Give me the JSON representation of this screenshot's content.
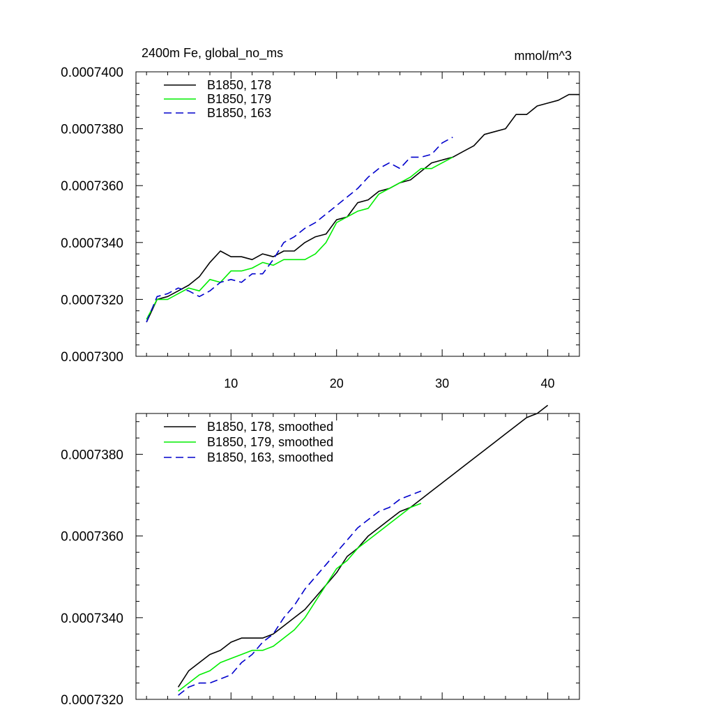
{
  "chart_data": [
    {
      "type": "line",
      "title": "2400m Fe, global_no_ms",
      "units": "mmol/m^3",
      "xlim": [
        1,
        43
      ],
      "ylim": [
        0.00073,
        0.00074
      ],
      "x_ticks": [
        10,
        20,
        30,
        40
      ],
      "x_tick_labels": [
        "10",
        "20",
        "30",
        "40"
      ],
      "y_ticks": [
        0.00073,
        0.000732,
        0.000734,
        0.000736,
        0.000738,
        0.00074
      ],
      "y_tick_labels": [
        "0.0007300",
        "0.0007320",
        "0.0007340",
        "0.0007360",
        "0.0007380",
        "0.0007400"
      ],
      "grid": false,
      "legend_position": "top-left",
      "series": [
        {
          "name": "B1850, 178",
          "color": "#000000",
          "dash": "solid",
          "x": [
            2,
            3,
            4,
            5,
            6,
            7,
            8,
            9,
            10,
            11,
            12,
            13,
            14,
            15,
            16,
            17,
            18,
            19,
            20,
            21,
            22,
            23,
            24,
            25,
            26,
            27,
            28,
            29,
            30,
            31,
            32,
            33,
            34,
            35,
            36,
            37,
            38,
            39,
            40,
            41,
            42,
            43
          ],
          "y": [
            0.0007312,
            0.000732,
            0.0007321,
            0.0007323,
            0.0007325,
            0.0007328,
            0.0007333,
            0.0007337,
            0.0007335,
            0.0007335,
            0.0007334,
            0.0007336,
            0.0007335,
            0.0007337,
            0.0007337,
            0.000734,
            0.0007342,
            0.0007343,
            0.0007348,
            0.0007349,
            0.0007354,
            0.0007355,
            0.0007358,
            0.0007359,
            0.0007361,
            0.0007362,
            0.0007365,
            0.0007368,
            0.0007369,
            0.000737,
            0.0007372,
            0.0007374,
            0.0007378,
            0.0007379,
            0.000738,
            0.0007385,
            0.0007385,
            0.0007388,
            0.0007389,
            0.000739,
            0.0007392,
            0.0007392
          ]
        },
        {
          "name": "B1850, 179",
          "color": "#00ee00",
          "dash": "solid",
          "x": [
            2,
            3,
            4,
            5,
            6,
            7,
            8,
            9,
            10,
            11,
            12,
            13,
            14,
            15,
            16,
            17,
            18,
            19,
            20,
            21,
            22,
            23,
            24,
            25,
            26,
            27,
            28,
            29,
            30,
            31
          ],
          "y": [
            0.0007313,
            0.000732,
            0.000732,
            0.0007322,
            0.0007324,
            0.0007323,
            0.0007327,
            0.0007326,
            0.000733,
            0.000733,
            0.0007331,
            0.0007333,
            0.0007332,
            0.0007334,
            0.0007334,
            0.0007334,
            0.0007336,
            0.000734,
            0.0007347,
            0.0007349,
            0.0007351,
            0.0007352,
            0.0007357,
            0.0007359,
            0.0007361,
            0.0007363,
            0.0007366,
            0.0007366,
            0.0007368,
            0.000737
          ]
        },
        {
          "name": "B1850, 163",
          "color": "#0000cc",
          "dash": "dashed",
          "x": [
            2,
            3,
            4,
            5,
            6,
            7,
            8,
            9,
            10,
            11,
            12,
            13,
            14,
            15,
            16,
            17,
            18,
            19,
            20,
            21,
            22,
            23,
            24,
            25,
            26,
            27,
            28,
            29,
            30,
            31
          ],
          "y": [
            0.0007312,
            0.0007321,
            0.0007322,
            0.0007324,
            0.0007323,
            0.0007321,
            0.0007323,
            0.0007326,
            0.0007327,
            0.0007326,
            0.0007329,
            0.0007329,
            0.0007334,
            0.000734,
            0.0007342,
            0.0007345,
            0.0007347,
            0.000735,
            0.0007353,
            0.0007356,
            0.0007359,
            0.0007363,
            0.0007366,
            0.0007368,
            0.0007366,
            0.000737,
            0.000737,
            0.0007371,
            0.0007375,
            0.0007377
          ]
        }
      ]
    },
    {
      "type": "line",
      "xlim": [
        1,
        43
      ],
      "ylim": [
        0.000732,
        0.000739
      ],
      "x_ticks": [
        10,
        20,
        30,
        40
      ],
      "x_tick_labels": [
        "",
        "",
        "",
        ""
      ],
      "y_ticks": [
        0.000732,
        0.000734,
        0.000736,
        0.000738
      ],
      "y_tick_labels": [
        "0.0007320",
        "0.0007340",
        "0.0007360",
        "0.0007380"
      ],
      "grid": false,
      "legend_position": "top-left",
      "series": [
        {
          "name": "B1850, 178, smoothed",
          "color": "#000000",
          "dash": "solid",
          "x": [
            5,
            6,
            7,
            8,
            9,
            10,
            11,
            12,
            13,
            14,
            15,
            16,
            17,
            18,
            19,
            20,
            21,
            22,
            23,
            24,
            25,
            26,
            27,
            28,
            29,
            30,
            31,
            32,
            33,
            34,
            35,
            36,
            37,
            38,
            39,
            40
          ],
          "y": [
            0.0007323,
            0.0007327,
            0.0007329,
            0.0007331,
            0.0007332,
            0.0007334,
            0.0007335,
            0.0007335,
            0.0007335,
            0.0007336,
            0.0007338,
            0.000734,
            0.0007342,
            0.0007345,
            0.0007348,
            0.0007351,
            0.0007355,
            0.0007357,
            0.000736,
            0.0007362,
            0.0007364,
            0.0007366,
            0.0007367,
            0.0007369,
            0.0007371,
            0.0007373,
            0.0007375,
            0.0007377,
            0.0007379,
            0.0007381,
            0.0007383,
            0.0007385,
            0.0007387,
            0.0007389,
            0.000739,
            0.0007392
          ]
        },
        {
          "name": "B1850, 179, smoothed",
          "color": "#00ee00",
          "dash": "solid",
          "x": [
            5,
            6,
            7,
            8,
            9,
            10,
            11,
            12,
            13,
            14,
            15,
            16,
            17,
            18,
            19,
            20,
            21,
            22,
            23,
            24,
            25,
            26,
            27,
            28
          ],
          "y": [
            0.0007322,
            0.0007324,
            0.0007326,
            0.0007327,
            0.0007329,
            0.000733,
            0.0007331,
            0.0007332,
            0.0007332,
            0.0007333,
            0.0007335,
            0.0007337,
            0.000734,
            0.0007344,
            0.0007348,
            0.0007352,
            0.0007354,
            0.0007357,
            0.0007359,
            0.0007361,
            0.0007363,
            0.0007365,
            0.0007367,
            0.0007368
          ]
        },
        {
          "name": "B1850, 163, smoothed",
          "color": "#0000cc",
          "dash": "dashed",
          "x": [
            5,
            6,
            7,
            8,
            9,
            10,
            11,
            12,
            13,
            14,
            15,
            16,
            17,
            18,
            19,
            20,
            21,
            22,
            23,
            24,
            25,
            26,
            27,
            28
          ],
          "y": [
            0.0007321,
            0.0007323,
            0.0007324,
            0.0007324,
            0.0007325,
            0.0007326,
            0.0007329,
            0.0007331,
            0.0007334,
            0.0007336,
            0.000734,
            0.0007343,
            0.0007347,
            0.000735,
            0.0007353,
            0.0007356,
            0.0007359,
            0.0007362,
            0.0007364,
            0.0007366,
            0.0007367,
            0.0007369,
            0.000737,
            0.0007371
          ]
        }
      ]
    }
  ]
}
